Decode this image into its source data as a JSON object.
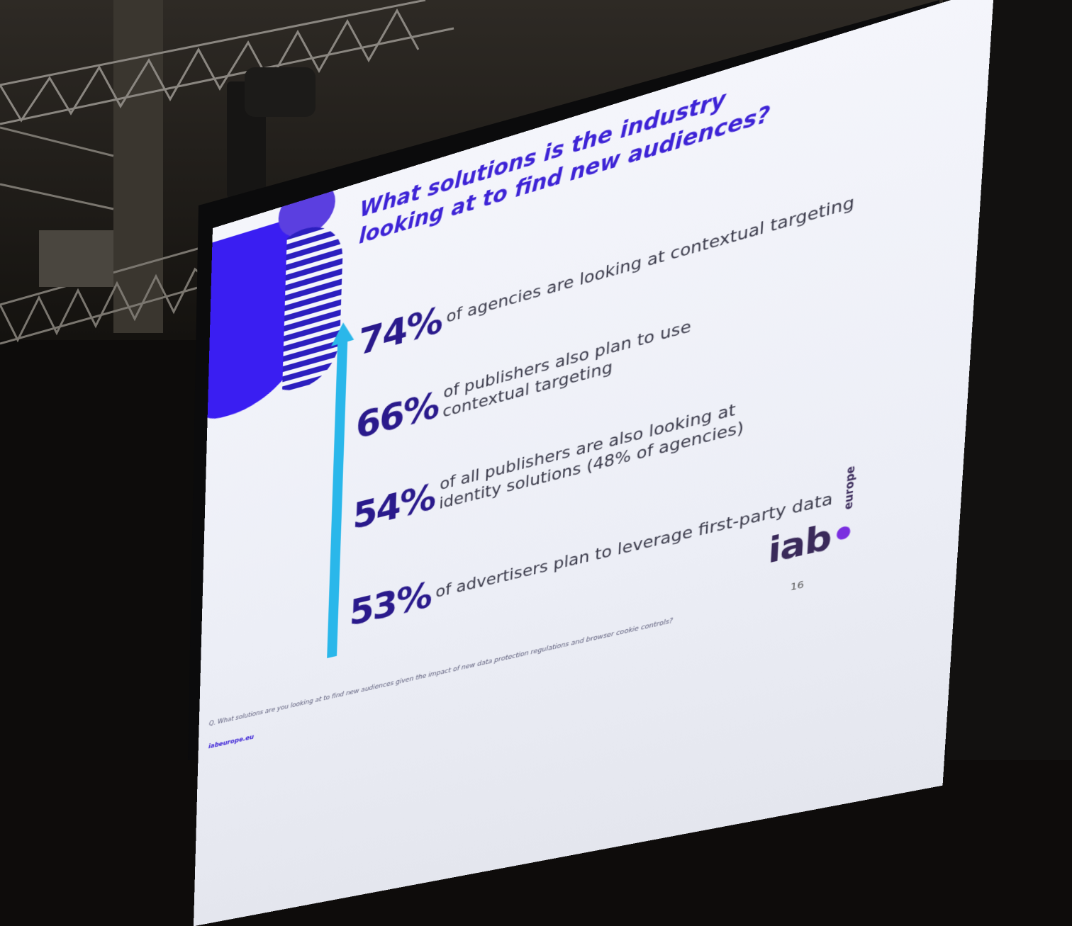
{
  "slide": {
    "title": "What solutions is the industry looking at to find new audiences?",
    "stats": [
      {
        "percent": "74%",
        "text": "of agencies are looking at contextual targeting"
      },
      {
        "percent": "66%",
        "text": "of publishers also plan to use contextual targeting"
      },
      {
        "percent": "54%",
        "text": "of all publishers are also looking at identity solutions (48% of agencies)"
      },
      {
        "percent": "53%",
        "text": "of advertisers plan to leverage first-party data"
      }
    ],
    "logo_main": "iab",
    "logo_sub": "europe",
    "page_number": "16",
    "footnote": "Q. What solutions are you looking at to find new audiences given the impact of new data protection regulations and browser cookie controls?",
    "site": "iabeurope.eu"
  },
  "colors": {
    "title": "#3d23d6",
    "percent": "#2a1a8c",
    "arrow": "#2ab7ea",
    "blob": "#3a1ef2",
    "slide_bg": "#f1f2f8"
  }
}
